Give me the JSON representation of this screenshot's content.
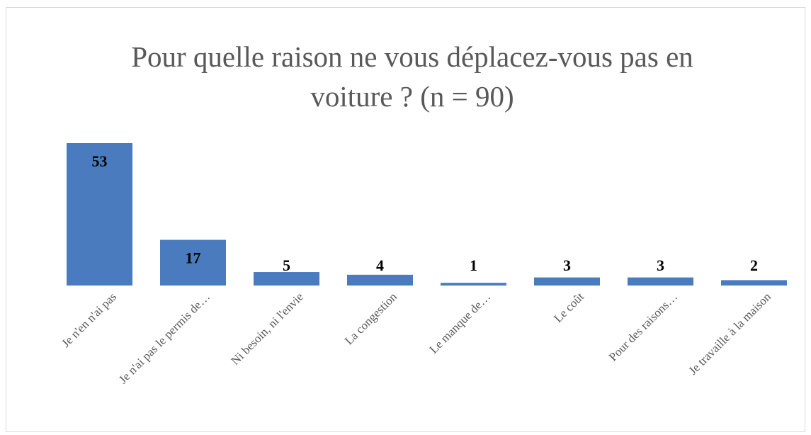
{
  "chart_data": {
    "type": "bar",
    "title": "Pour quelle raison ne vous déplacez-vous pas en voiture ? (n = 90)",
    "categories": [
      "Je n'en n'ai pas",
      "Je n'ai pas le permis de…",
      "Ni besoin, ni l'envie",
      "La congestion",
      "Le manque de…",
      "Le coût",
      "Pour des raisons…",
      "Je travaille à la maison"
    ],
    "values": [
      53,
      17,
      5,
      4,
      1,
      3,
      3,
      2
    ],
    "color": "#4a7bbf"
  }
}
